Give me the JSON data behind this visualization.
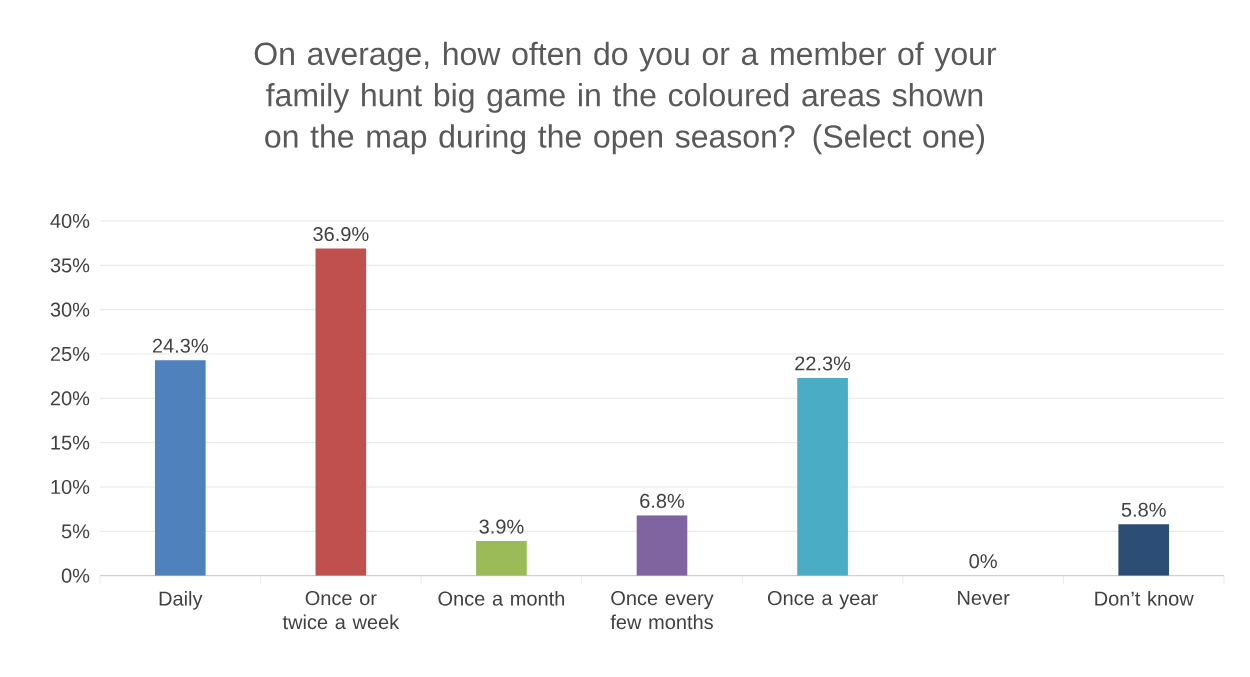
{
  "chart_data": {
    "type": "bar",
    "title": "On average, how often do you or a member of your family hunt big game in the coloured areas shown on the map during the open season? (Select one)",
    "categories": [
      "Daily",
      "Once or twice a week",
      "Once a month",
      "Once every few months",
      "Once a year",
      "Never",
      "Don’t know"
    ],
    "values": [
      24.3,
      36.9,
      3.9,
      6.8,
      22.3,
      0,
      5.8
    ],
    "colors": [
      "#4f81bd",
      "#c0504d",
      "#9bbb59",
      "#8064a2",
      "#4bacc6",
      "#f79646",
      "#2c4d75"
    ],
    "value_labels": [
      "24.3%",
      "36.9%",
      "3.9%",
      "6.8%",
      "22.3%",
      "0%",
      "5.8%"
    ],
    "ylim": [
      0,
      40
    ],
    "yticks": [
      {
        "value": 0,
        "label": "0%"
      },
      {
        "value": 5,
        "label": "5%"
      },
      {
        "value": 10,
        "label": "10%"
      },
      {
        "value": 15,
        "label": "15%"
      },
      {
        "value": 20,
        "label": "20%"
      },
      {
        "value": 25,
        "label": "25%"
      },
      {
        "value": 30,
        "label": "30%"
      },
      {
        "value": 35,
        "label": "35%"
      },
      {
        "value": 40,
        "label": "40%"
      }
    ],
    "grid": "y"
  }
}
